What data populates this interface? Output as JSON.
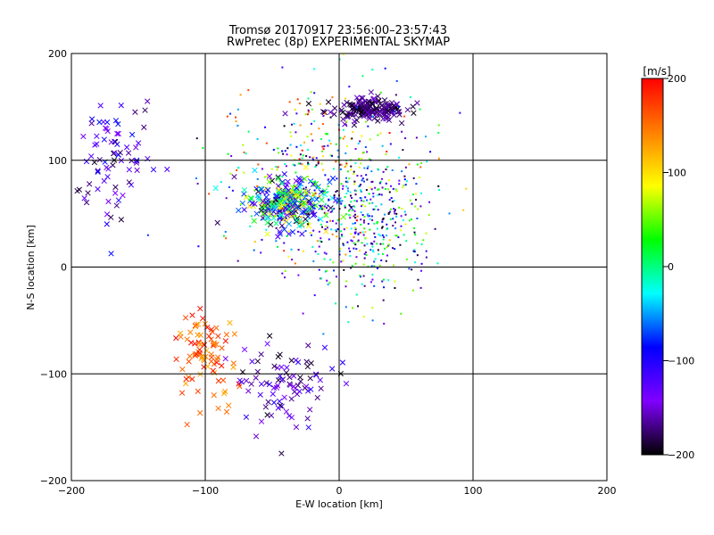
{
  "chart_data": {
    "type": "scatter",
    "title": "Tromsø 20170917 23:56:00–23:57:43",
    "subtitle": "RwPretec (8p) EXPERIMENTAL SKYMAP",
    "xlabel": "E-W location [km]",
    "ylabel": "N-S location [km]",
    "xlim": [
      -200,
      200
    ],
    "ylim": [
      -200,
      200
    ],
    "xticks": [
      -200,
      -100,
      0,
      100,
      200
    ],
    "yticks": [
      -200,
      -100,
      0,
      100,
      200
    ],
    "x_tick_labels": [
      "−200",
      "−100",
      "0",
      "100",
      "200"
    ],
    "y_tick_labels": [
      "−200",
      "−100",
      "0",
      "100",
      "200"
    ],
    "grid": true,
    "colorbar": {
      "label": "[m/s]",
      "range": [
        -200,
        200
      ],
      "ticks": [
        200,
        100,
        0,
        -100,
        -200
      ],
      "tick_labels": [
        "200",
        "100",
        "0",
        "−100",
        "−200"
      ],
      "colormap": [
        "#000000",
        "#8000ff",
        "#0000ff",
        "#00ffff",
        "#00ff00",
        "#ffff00",
        "#ff8000",
        "#ff0000"
      ]
    },
    "marker_types": [
      "cross",
      "dot"
    ],
    "clusters": [
      {
        "name_visible": false,
        "center": [
          -40,
          60
        ],
        "spread": [
          15,
          12
        ],
        "count": 300,
        "velocity": [
          -200,
          120
        ],
        "marker": "cross"
      },
      {
        "name_visible": false,
        "center": [
          20,
          148
        ],
        "spread": [
          15,
          5
        ],
        "count": 180,
        "velocity": [
          -200,
          -150
        ],
        "marker": "cross"
      },
      {
        "name_visible": false,
        "center": [
          -170,
          100
        ],
        "spread": [
          15,
          30
        ],
        "count": 80,
        "velocity": [
          -200,
          -80
        ],
        "marker": "cross"
      },
      {
        "name_visible": false,
        "center": [
          -100,
          -80
        ],
        "spread": [
          12,
          20
        ],
        "count": 90,
        "velocity": [
          120,
          200
        ],
        "marker": "cross"
      },
      {
        "name_visible": false,
        "center": [
          -40,
          -110
        ],
        "spread": [
          20,
          20
        ],
        "count": 90,
        "velocity": [
          -200,
          -100
        ],
        "marker": "cross"
      },
      {
        "name_visible": false,
        "center": [
          20,
          40
        ],
        "spread": [
          25,
          35
        ],
        "count": 400,
        "velocity": [
          -200,
          80
        ],
        "marker": "dot"
      },
      {
        "name_visible": false,
        "center": [
          -10,
          90
        ],
        "spread": [
          40,
          40
        ],
        "count": 350,
        "velocity": [
          -200,
          200
        ],
        "marker": "dot"
      }
    ]
  }
}
